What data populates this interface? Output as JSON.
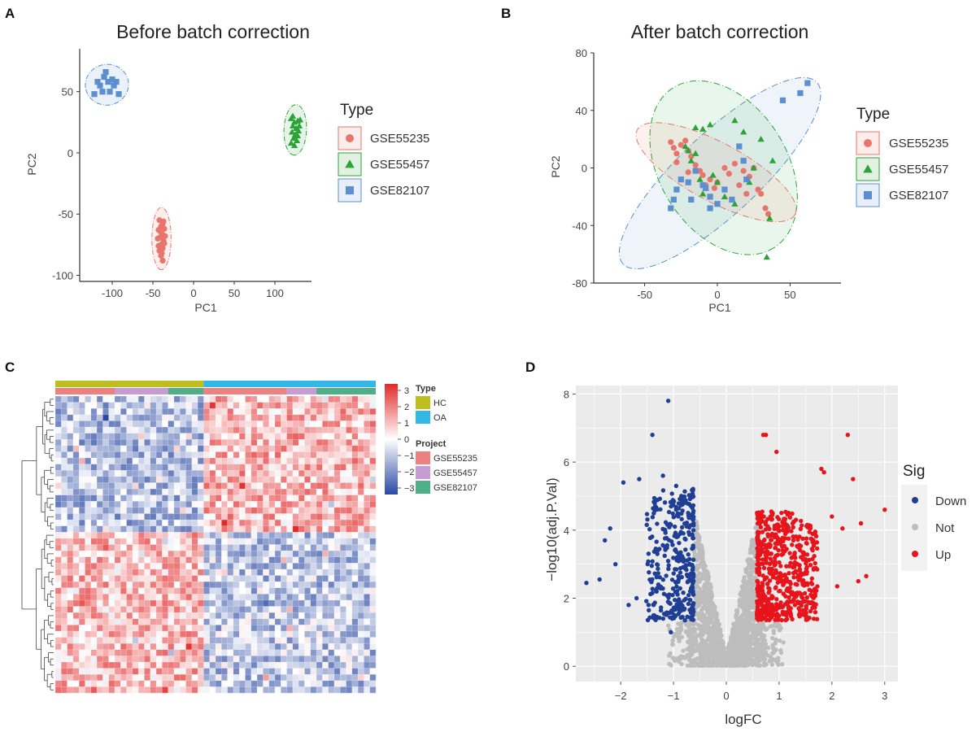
{
  "panels": {
    "a": "A",
    "b": "B",
    "c": "C",
    "d": "D"
  },
  "chart_data": [
    {
      "id": "A",
      "type": "scatter",
      "title": "Before batch correction",
      "xlabel": "PC1",
      "ylabel": "PC2",
      "xlim": [
        -140,
        145
      ],
      "ylim": [
        -105,
        85
      ],
      "xticks": [
        -100,
        -50,
        0,
        50,
        100
      ],
      "yticks": [
        -100,
        -50,
        0,
        50
      ],
      "legend_title": "Type",
      "series": [
        {
          "name": "GSE55235",
          "color": "#E8756B",
          "marker": "circle",
          "points": [
            [
              -42,
              -55
            ],
            [
              -40,
              -60
            ],
            [
              -38,
              -58
            ],
            [
              -43,
              -63
            ],
            [
              -39,
              -66
            ],
            [
              -41,
              -69
            ],
            [
              -37,
              -72
            ],
            [
              -44,
              -70
            ],
            [
              -40,
              -75
            ],
            [
              -38,
              -78
            ],
            [
              -42,
              -80
            ],
            [
              -36,
              -62
            ],
            [
              -35,
              -68
            ],
            [
              -40,
              -84
            ],
            [
              -38,
              -88
            ],
            [
              -41,
              -64
            ],
            [
              -37,
              -56
            ],
            [
              -43,
              -76
            ],
            [
              -39,
              -82
            ],
            [
              -36,
              -74
            ]
          ]
        },
        {
          "name": "GSE55457",
          "color": "#2BA336",
          "marker": "triangle",
          "points": [
            [
              120,
              28
            ],
            [
              124,
              25
            ],
            [
              128,
              26
            ],
            [
              122,
              22
            ],
            [
              126,
              20
            ],
            [
              130,
              22
            ],
            [
              121,
              17
            ],
            [
              125,
              15
            ],
            [
              129,
              18
            ],
            [
              123,
              12
            ],
            [
              127,
              10
            ],
            [
              120,
              8
            ],
            [
              124,
              6
            ],
            [
              128,
              14
            ],
            [
              122,
              30
            ],
            [
              131,
              27
            ]
          ]
        },
        {
          "name": "GSE82107",
          "color": "#5B8FD0",
          "marker": "square",
          "points": [
            [
              -122,
              48
            ],
            [
              -115,
              55
            ],
            [
              -110,
              62
            ],
            [
              -105,
              58
            ],
            [
              -98,
              55
            ],
            [
              -112,
              50
            ],
            [
              -103,
              50
            ],
            [
              -108,
              66
            ],
            [
              -100,
              60
            ],
            [
              -92,
              48
            ],
            [
              -118,
              58
            ],
            [
              -95,
              58
            ]
          ]
        }
      ]
    },
    {
      "id": "B",
      "type": "scatter",
      "title": "After batch correction",
      "xlabel": "PC1",
      "ylabel": "PC2",
      "xlim": [
        -85,
        85
      ],
      "ylim": [
        -80,
        80
      ],
      "xticks": [
        -50,
        0,
        50
      ],
      "yticks": [
        -80,
        -40,
        0,
        40,
        80
      ],
      "legend_title": "Type",
      "series": [
        {
          "name": "GSE55235",
          "color": "#E8756B",
          "marker": "circle",
          "points": [
            [
              -32,
              18
            ],
            [
              -30,
              14
            ],
            [
              -28,
              10
            ],
            [
              -25,
              16
            ],
            [
              -22,
              19
            ],
            [
              -20,
              12
            ],
            [
              -18,
              8
            ],
            [
              -15,
              2
            ],
            [
              -12,
              -2
            ],
            [
              -10,
              -5
            ],
            [
              -5,
              -8
            ],
            [
              0,
              -10
            ],
            [
              5,
              0
            ],
            [
              8,
              -4
            ],
            [
              12,
              3
            ],
            [
              15,
              -12
            ],
            [
              18,
              -2
            ],
            [
              22,
              -6
            ],
            [
              25,
              0
            ],
            [
              28,
              -15
            ],
            [
              30,
              -18
            ],
            [
              33,
              -28
            ],
            [
              35,
              -32
            ],
            [
              -20,
              -3
            ],
            [
              -8,
              -12
            ],
            [
              -2,
              -14
            ],
            [
              20,
              -18
            ],
            [
              -28,
              4
            ]
          ]
        },
        {
          "name": "GSE55457",
          "color": "#2BA336",
          "marker": "triangle",
          "points": [
            [
              -15,
              28
            ],
            [
              -10,
              27
            ],
            [
              -5,
              30
            ],
            [
              12,
              33
            ],
            [
              30,
              20
            ],
            [
              38,
              5
            ],
            [
              -20,
              12
            ],
            [
              -15,
              10
            ],
            [
              -12,
              -8
            ],
            [
              -8,
              -14
            ],
            [
              0,
              -10
            ],
            [
              -3,
              -5
            ],
            [
              12,
              -25
            ],
            [
              22,
              -10
            ],
            [
              36,
              -35
            ],
            [
              34,
              -62
            ],
            [
              -18,
              5
            ],
            [
              -10,
              -18
            ],
            [
              18,
              25
            ],
            [
              5,
              -20
            ],
            [
              25,
              0
            ],
            [
              -22,
              15
            ]
          ]
        },
        {
          "name": "GSE82107",
          "color": "#5B8FD0",
          "marker": "square",
          "points": [
            [
              -32,
              -28
            ],
            [
              -28,
              -15
            ],
            [
              -25,
              -8
            ],
            [
              -20,
              -10
            ],
            [
              -15,
              -2
            ],
            [
              -10,
              -12
            ],
            [
              -5,
              -20
            ],
            [
              -5,
              -28
            ],
            [
              0,
              -25
            ],
            [
              5,
              -15
            ],
            [
              10,
              -22
            ],
            [
              15,
              15
            ],
            [
              18,
              5
            ],
            [
              20,
              -8
            ],
            [
              45,
              47
            ],
            [
              57,
              52
            ],
            [
              62,
              59
            ],
            [
              -18,
              -22
            ],
            [
              -8,
              -14
            ],
            [
              -30,
              -22
            ]
          ]
        }
      ]
    },
    {
      "id": "C",
      "type": "heatmap",
      "rows": 48,
      "cols": 54,
      "color_scale": {
        "min": -3,
        "max": 3,
        "low_color": "#2948A2",
        "mid_color": "#FFFFFF",
        "high_color": "#E22A2A",
        "ticks": [
          3,
          2,
          1,
          0,
          -1,
          -2,
          -3
        ]
      },
      "column_annotations": {
        "Type": [
          {
            "label": "HC",
            "color": "#BEBE1E",
            "count": 25
          },
          {
            "label": "OA",
            "color": "#33B7E6",
            "count": 29
          }
        ],
        "Project": [
          {
            "label": "GSE55235",
            "color": "#EE8080",
            "segments": [
              [
                0,
                10
              ],
              [
                25,
                39
              ]
            ]
          },
          {
            "label": "GSE55457",
            "color": "#C89BD4",
            "segments": [
              [
                10,
                19
              ],
              [
                39,
                44
              ]
            ]
          },
          {
            "label": "GSE82107",
            "color": "#4FAF86",
            "segments": [
              [
                19,
                25
              ],
              [
                44,
                54
              ]
            ]
          }
        ]
      },
      "pattern": "top 22 rows: HC low / OA high; bottom 26 rows: HC high / OA low",
      "legend_titles": {
        "type": "Type",
        "project": "Project"
      }
    },
    {
      "id": "D",
      "type": "scatter",
      "subtype": "volcano",
      "xlabel": "logFC",
      "ylabel": "−log10(adj.P.Val)",
      "xlim": [
        -2.85,
        3.25
      ],
      "ylim": [
        -0.45,
        8.25
      ],
      "xticks": [
        -2,
        -1,
        0,
        1,
        2,
        3
      ],
      "yticks": [
        0,
        2,
        4,
        6,
        8
      ],
      "legend_title": "Sig",
      "panel_background": "#EBEBEB",
      "series": [
        {
          "name": "Down",
          "color": "#1F3F95",
          "n_points": 330,
          "outliers": [
            [
              -1.1,
              7.8
            ],
            [
              -1.4,
              6.8
            ],
            [
              -1.95,
              5.4
            ],
            [
              -2.2,
              4.05
            ],
            [
              -2.1,
              3.0
            ],
            [
              -2.3,
              3.7
            ],
            [
              -2.65,
              2.45
            ],
            [
              -2.4,
              2.55
            ],
            [
              -1.65,
              5.5
            ],
            [
              -1.2,
              5.6
            ],
            [
              -0.95,
              5.3
            ],
            [
              -1.05,
              1.0
            ],
            [
              -1.7,
              2.0
            ],
            [
              -1.85,
              1.8
            ]
          ]
        },
        {
          "name": "Not",
          "color": "#BDBDBD",
          "n_points": 1800
        },
        {
          "name": "Up",
          "color": "#E8141B",
          "n_points": 580,
          "outliers": [
            [
              0.7,
              6.8
            ],
            [
              0.75,
              6.8
            ],
            [
              0.95,
              6.3
            ],
            [
              2.3,
              6.8
            ],
            [
              1.8,
              5.8
            ],
            [
              1.85,
              5.7
            ],
            [
              2.4,
              5.5
            ],
            [
              2.55,
              4.2
            ],
            [
              3.0,
              4.6
            ],
            [
              2.5,
              2.5
            ],
            [
              2.65,
              2.65
            ],
            [
              2.1,
              2.35
            ],
            [
              1.6,
              2.1
            ],
            [
              1.3,
              1.8
            ],
            [
              2.0,
              4.4
            ],
            [
              2.2,
              4.05
            ]
          ]
        }
      ]
    }
  ]
}
